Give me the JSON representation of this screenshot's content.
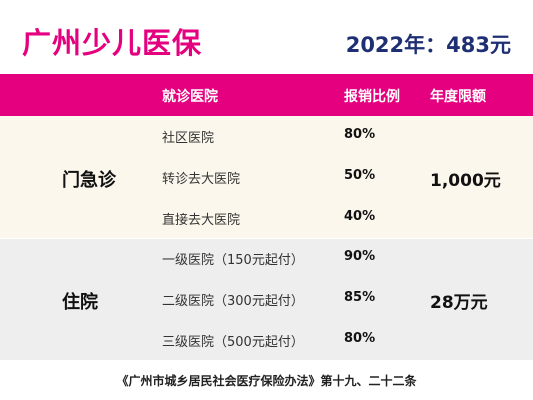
{
  "title": "广州少儿医保",
  "premium": "2022年：483元",
  "columns": {
    "institution": "就诊医院",
    "ratio": "报销比例",
    "limit": "年度限额"
  },
  "sections": [
    {
      "category": "门急诊",
      "limit": "1,000元",
      "rows": [
        {
          "institution": "社区医院",
          "ratio": "80%"
        },
        {
          "institution": "转诊去大医院",
          "ratio": "50%"
        },
        {
          "institution": "直接去大医院",
          "ratio": "40%"
        }
      ]
    },
    {
      "category": "住院",
      "limit": "28万元",
      "rows": [
        {
          "institution": "一级医院（150元起付）",
          "ratio": "90%"
        },
        {
          "institution": "二级医院（300元起付）",
          "ratio": "85%"
        },
        {
          "institution": "三级医院（500元起付）",
          "ratio": "80%"
        }
      ]
    }
  ],
  "footer": "《广州市城乡居民社会医疗保险办法》第十九、二十二条",
  "colors": {
    "accent": "#e4007f",
    "premium": "#1f2f73",
    "section1_bg": "#fbf7ec",
    "section2_bg": "#eeeeee"
  }
}
